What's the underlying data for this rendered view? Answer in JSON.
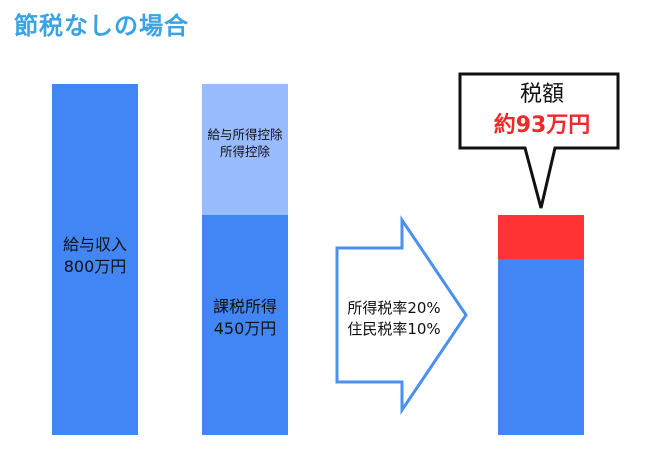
{
  "title": "節税なしの場合",
  "colors": {
    "title": "#3aa3e3",
    "bar_blue": "#4285f4",
    "bar_light_blue": "#99bbff",
    "tax_red": "#ff3333",
    "callout_value_red": "#ee2a2a",
    "arrow_outline": "#4a90f0"
  },
  "salary_bar": {
    "label_line1": "給与収入",
    "label_line2": "800万円"
  },
  "breakdown_bar": {
    "deduction_line1": "給与所得控除",
    "deduction_line2": "所得控除",
    "taxable_line1": "課税所得",
    "taxable_line2": "450万円"
  },
  "arrow": {
    "rate_line1": "所得税率20%",
    "rate_line2": "住民税率10%"
  },
  "callout": {
    "label": "税額",
    "value": "約93万円"
  }
}
